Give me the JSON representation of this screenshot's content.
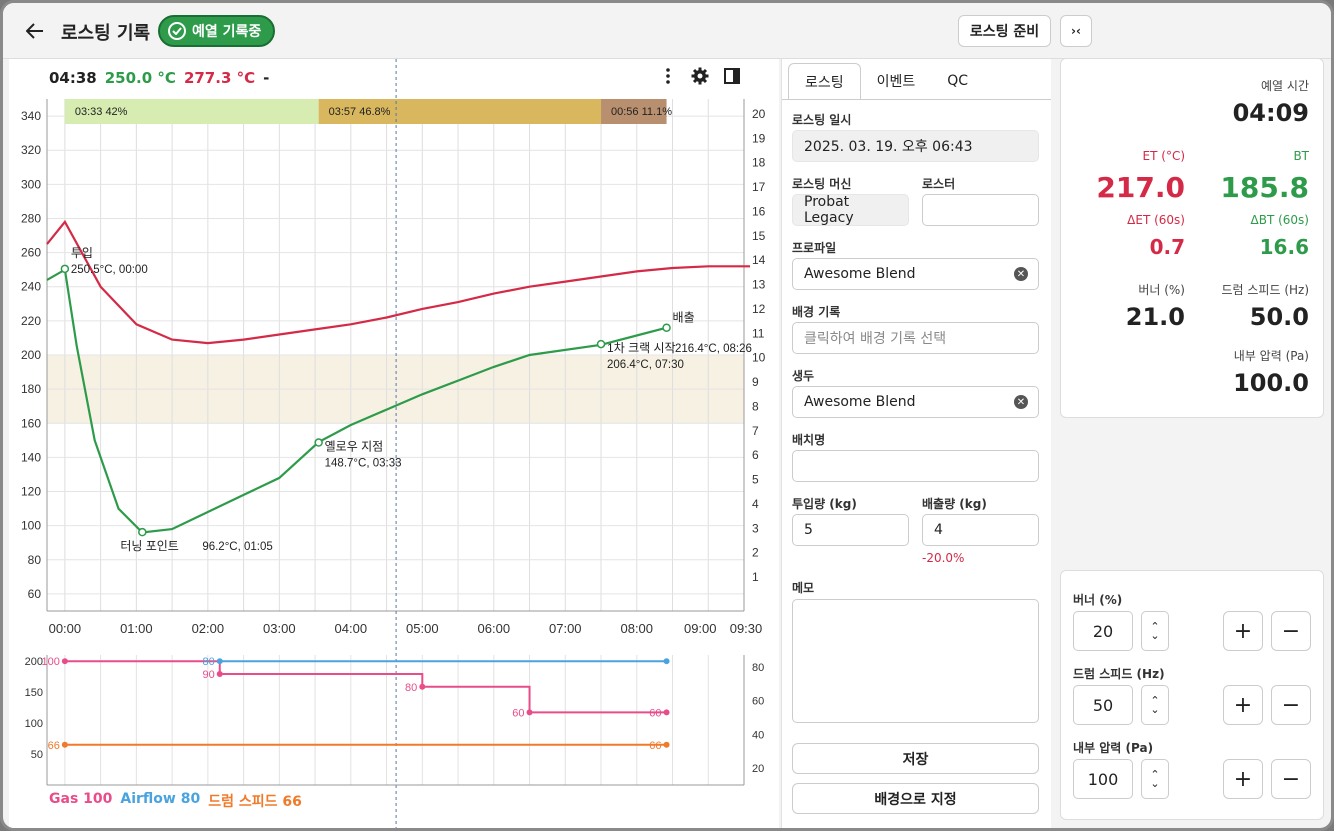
{
  "header": {
    "title": "로스팅 기록",
    "status_badge": "예열 기록중",
    "prep_button": "로스팅 준비",
    "toggle_button": "›‹"
  },
  "readout": {
    "time": "04:38",
    "bt": "250.0 °C",
    "et": "277.3 °C",
    "extra": "-"
  },
  "legend": {
    "gas": "Gas 100",
    "airflow": "Airflow 80",
    "drum": "드럼 스피드 66"
  },
  "colors": {
    "bt": "#2e9b4b",
    "et": "#d42a47",
    "gas": "#e84d8a",
    "airflow": "#4aa3df",
    "drum": "#f07a2a"
  },
  "chart_data": [
    {
      "type": "line",
      "x_ticks": [
        "00:00",
        "01:00",
        "02:00",
        "03:00",
        "04:00",
        "05:00",
        "06:00",
        "07:00",
        "08:00",
        "09:00",
        "09:30"
      ],
      "ylim": [
        50,
        350
      ],
      "y_ticks": [
        60,
        80,
        100,
        120,
        140,
        160,
        180,
        200,
        220,
        240,
        260,
        280,
        300,
        320,
        340
      ],
      "y2_ticks": [
        1,
        2,
        3,
        4,
        5,
        6,
        7,
        8,
        9,
        10,
        11,
        12,
        13,
        14,
        15,
        16,
        17,
        18,
        19,
        20
      ],
      "phases": [
        {
          "label": "03:33  42%",
          "color": "#d6ecb0"
        },
        {
          "label": "03:57  46.8%",
          "color": "#d9b75e"
        },
        {
          "label": "00:56  11.1%",
          "color": "#b9906f"
        }
      ],
      "series": [
        {
          "name": "ET",
          "color": "#d42a47",
          "points": [
            [
              -15,
              265
            ],
            [
              0,
              278
            ],
            [
              30,
              240
            ],
            [
              60,
              218
            ],
            [
              90,
              209
            ],
            [
              120,
              207
            ],
            [
              150,
              209
            ],
            [
              180,
              212
            ],
            [
              210,
              215
            ],
            [
              240,
              218
            ],
            [
              270,
              222
            ],
            [
              300,
              227
            ],
            [
              330,
              231
            ],
            [
              360,
              236
            ],
            [
              390,
              240
            ],
            [
              420,
              243
            ],
            [
              450,
              246
            ],
            [
              480,
              249
            ],
            [
              510,
              251
            ],
            [
              540,
              252
            ],
            [
              575,
              252
            ]
          ]
        },
        {
          "name": "BT",
          "color": "#2e9b4b",
          "points": [
            [
              -15,
              244
            ],
            [
              0,
              250
            ],
            [
              10,
              205
            ],
            [
              25,
              150
            ],
            [
              45,
              110
            ],
            [
              65,
              96
            ],
            [
              90,
              98
            ],
            [
              120,
              108
            ],
            [
              150,
              118
            ],
            [
              180,
              128
            ],
            [
              213,
              149
            ],
            [
              240,
              159
            ],
            [
              270,
              168
            ],
            [
              300,
              177
            ],
            [
              330,
              185
            ],
            [
              360,
              193
            ],
            [
              390,
              200
            ],
            [
              450,
              206
            ],
            [
              505,
              216
            ]
          ]
        }
      ],
      "annotations": [
        {
          "label": "투입",
          "detail": "250.5°C, 00:00",
          "t": 0,
          "v": 250.5
        },
        {
          "label": "터닝 포인트",
          "detail": "96.2°C, 01:05",
          "t": 65,
          "v": 96.2
        },
        {
          "label": "옐로우 지점",
          "detail": "148.7°C, 03:33",
          "t": 213,
          "v": 148.7
        },
        {
          "label": "1차 크랙 시작",
          "detail": "206.4°C, 07:30",
          "t": 450,
          "v": 206.4,
          "extra": "216.4°C, 08:26"
        },
        {
          "label": "배출",
          "detail": "",
          "t": 505,
          "v": 216
        }
      ]
    },
    {
      "type": "line",
      "y_ticks": [
        50,
        100,
        150,
        200
      ],
      "y2_ticks": [
        20,
        40,
        60,
        80
      ],
      "series": [
        {
          "name": "Gas",
          "color": "#e84d8a",
          "steps": [
            [
              0,
              100
            ],
            [
              130,
              90
            ],
            [
              300,
              80
            ],
            [
              390,
              60
            ],
            [
              505,
              60
            ]
          ],
          "labels": [
            "100",
            "90",
            "80",
            "60",
            "60"
          ]
        },
        {
          "name": "Airflow",
          "color": "#4aa3df",
          "steps": [
            [
              130,
              80
            ],
            [
              505,
              80
            ]
          ],
          "labels": [
            "80"
          ]
        },
        {
          "name": "드럼 스피드",
          "color": "#f07a2a",
          "steps": [
            [
              0,
              66
            ],
            [
              505,
              66
            ]
          ],
          "labels": [
            "66",
            "66"
          ]
        }
      ]
    }
  ],
  "form": {
    "tabs": [
      "로스팅",
      "이벤트",
      "QC"
    ],
    "roast_date_label": "로스팅 일시",
    "roast_date": "2025. 03. 19. 오후 06:43",
    "machine_label": "로스팅 머신",
    "machine": "Probat Legacy",
    "roaster_label": "로스터",
    "roaster": "",
    "profile_label": "프로파일",
    "profile": "Awesome Blend",
    "bg_label": "배경 기록",
    "bg_placeholder": "클릭하여 배경 기록 선택",
    "bean_label": "생두",
    "bean": "Awesome Blend",
    "batch_label": "배치명",
    "batch": "",
    "in_label": "투입량 (kg)",
    "in_value": "5",
    "out_label": "배출량 (kg)",
    "out_value": "4",
    "change": "-20.0%",
    "memo_label": "메모",
    "save": "저장",
    "set_bg": "배경으로 지정"
  },
  "stats": {
    "preheat_label": "예열 시간",
    "preheat": "04:09",
    "et_label": "ET (°C)",
    "et": "217.0",
    "bt_label": "BT",
    "bt": "185.8",
    "det_label": "ΔET (60s)",
    "det": "0.7",
    "dbt_label": "ΔBT (60s)",
    "dbt": "16.6",
    "burner_label": "버너 (%)",
    "burner": "21.0",
    "drum_label": "드럼 스피드 (Hz)",
    "drum": "50.0",
    "pressure_label": "내부 압력 (Pa)",
    "pressure": "100.0"
  },
  "controls": {
    "burner_label": "버너 (%)",
    "burner": "20",
    "drum_label": "드럼 스피드 (Hz)",
    "drum": "50",
    "pressure_label": "내부 압력 (Pa)",
    "pressure": "100"
  }
}
